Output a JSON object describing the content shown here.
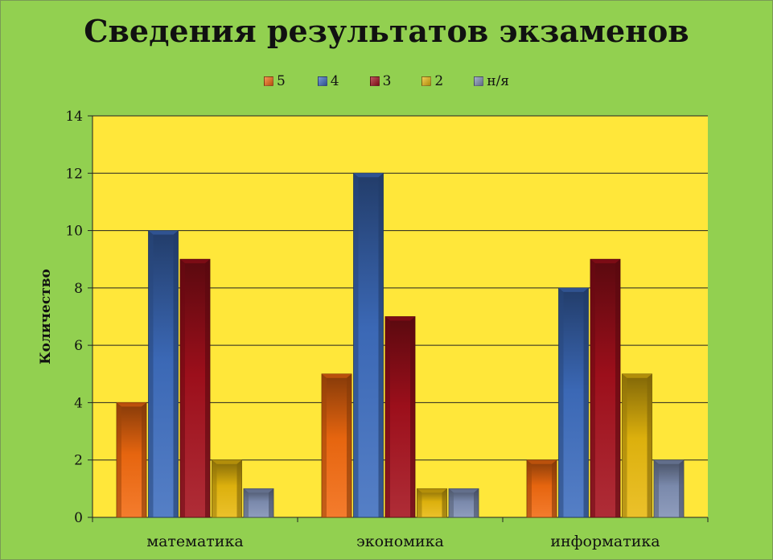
{
  "chart_data": {
    "type": "bar",
    "title": "Сведения результатов экзаменов",
    "ylabel": "Количество",
    "xlabel": "",
    "ylim": [
      0,
      14
    ],
    "yticks": [
      0,
      2,
      4,
      6,
      8,
      10,
      12,
      14
    ],
    "grid": true,
    "legend_position": "top",
    "categories": [
      "математика",
      "экономика",
      "информатика"
    ],
    "series": [
      {
        "name": "5",
        "values": [
          4,
          5,
          2
        ],
        "color": "#F26A10"
      },
      {
        "name": "4",
        "values": [
          10,
          12,
          8
        ],
        "color": "#3E6DBE"
      },
      {
        "name": "3",
        "values": [
          9,
          7,
          9
        ],
        "color": "#A4101C"
      },
      {
        "name": "2",
        "values": [
          2,
          1,
          5
        ],
        "color": "#E8B90E"
      },
      {
        "name": "н/я",
        "values": [
          1,
          1,
          2
        ],
        "color": "#8090B4"
      }
    ],
    "plot_background": "#FFE73A",
    "background": "#92D050"
  }
}
